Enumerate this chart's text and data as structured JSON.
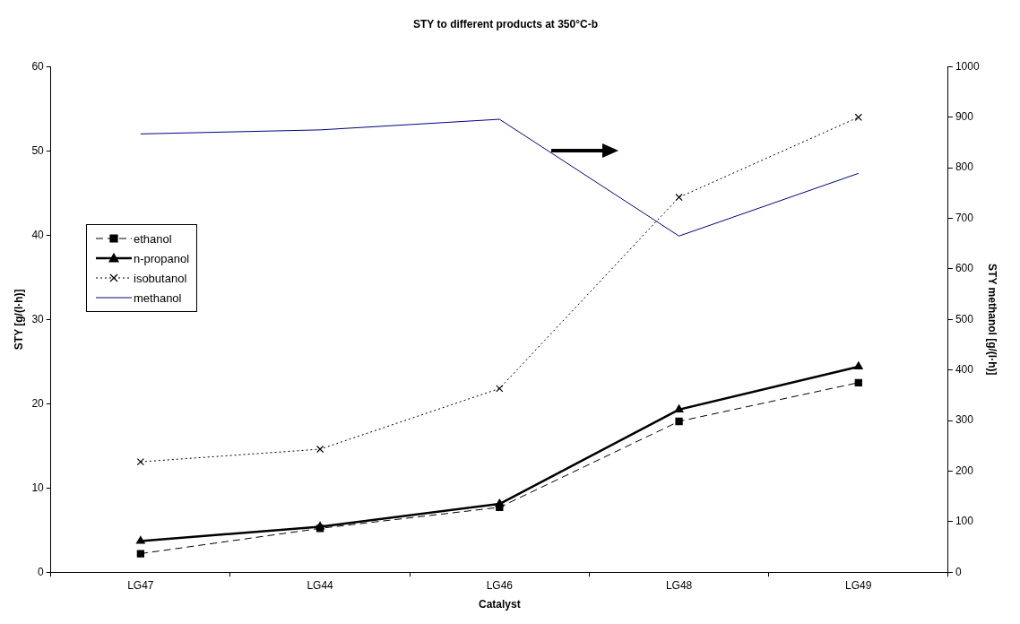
{
  "chart_data": {
    "type": "line",
    "title": "STY to different products at 350°C-b",
    "xlabel": "Catalyst",
    "ylabel": "STY [g/(l·h)]",
    "y2label": "STY methanol [g/(l·h)]",
    "categories": [
      "LG47",
      "LG44",
      "LG46",
      "LG48",
      "LG49"
    ],
    "series": [
      {
        "name": "ethanol",
        "color": "#000000",
        "marker": "square",
        "line_style": "dashed",
        "values": [
          2.2,
          5.2,
          7.7,
          17.9,
          22.5
        ]
      },
      {
        "name": "n-propanol",
        "color": "#000000",
        "marker": "triangle",
        "line_style": "solid",
        "values": [
          3.7,
          5.4,
          8.1,
          19.3,
          24.4
        ]
      },
      {
        "name": "isobutanol",
        "color": "#000000",
        "marker": "cross",
        "line_style": "dotted",
        "values": [
          13.1,
          14.6,
          21.8,
          44.5,
          54
        ]
      },
      {
        "name": "methanol",
        "color": "#000080",
        "marker": "none",
        "line_style": "solid",
        "axis": "y2",
        "values": [
          867,
          875,
          896,
          665,
          789
        ]
      }
    ],
    "ylim": [
      0,
      60
    ],
    "yticks": [
      0,
      10,
      20,
      30,
      40,
      50,
      60
    ],
    "y2lim": [
      0,
      1000
    ],
    "y2ticks": [
      0,
      100,
      200,
      300,
      400,
      500,
      600,
      700,
      800,
      900,
      1000
    ],
    "grid": false,
    "legend": "left"
  }
}
